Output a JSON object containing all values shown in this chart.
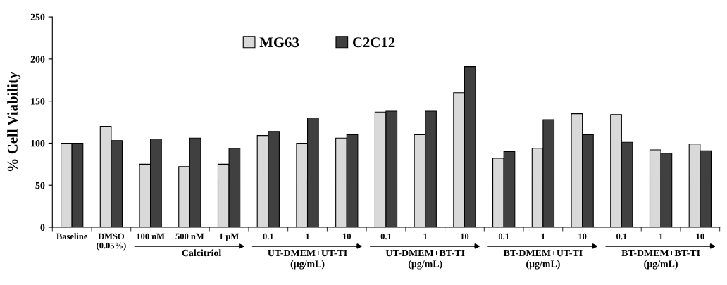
{
  "chart_data": {
    "type": "bar",
    "ylabel": "% Cell Viability",
    "categories": [
      "Baseline",
      "DMSO\n(0.05%)",
      "100 nM",
      "500 nM",
      "1 µM",
      "0.1",
      "1",
      "10",
      "0.1",
      "1",
      "10",
      "0.1",
      "1",
      "10",
      "0.1",
      "1",
      "10"
    ],
    "series": [
      {
        "name": "MG63",
        "color": "#d9d9d9",
        "values": [
          100,
          120,
          75,
          72,
          75,
          109,
          100,
          106,
          137,
          110,
          160,
          82,
          94,
          135,
          134,
          92,
          99
        ]
      },
      {
        "name": "C2C12",
        "color": "#404040",
        "values": [
          100,
          103,
          105,
          106,
          94,
          114,
          130,
          110,
          138,
          138,
          191,
          90,
          128,
          110,
          101,
          88,
          91
        ]
      }
    ],
    "ylim": [
      0,
      250
    ],
    "yticks": [
      0,
      50,
      100,
      150,
      200,
      250
    ],
    "grid": false,
    "legend": "top",
    "annotations": [
      "Calcitriol",
      "UT-DMEM+UT-TI\n(µg/mL)",
      "UT-DMEM+BT-TI\n(µg/mL)",
      "BT-DMEM+UT-TI\n(µg/mL)",
      "BT-DMEM+BT-TI\n(µg/mL)"
    ]
  }
}
